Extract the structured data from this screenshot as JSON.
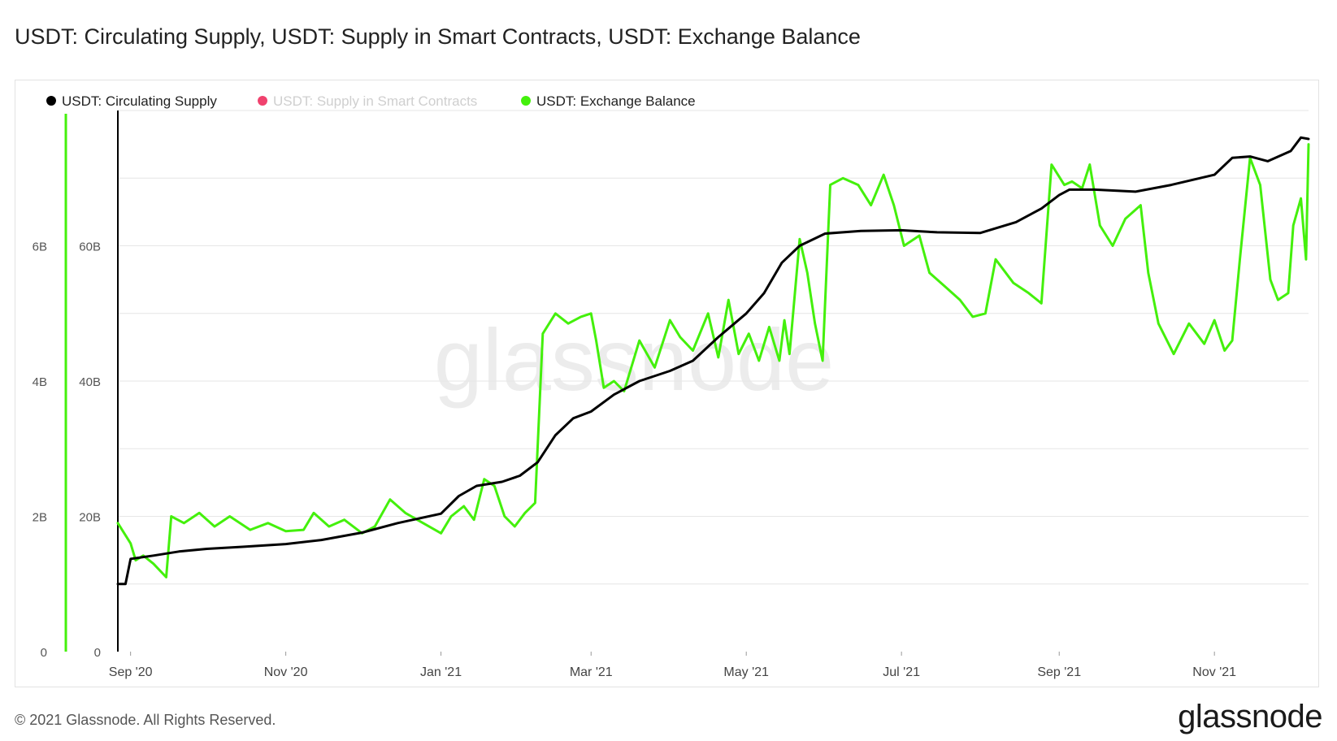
{
  "title": "USDT: Circulating Supply, USDT: Supply in Smart Contracts, USDT: Exchange Balance",
  "footer": "© 2021 Glassnode. All Rights Reserved.",
  "brand": "glassnode",
  "watermark": "glassnode",
  "colors": {
    "circulating": "#000000",
    "smart_contracts": "#f0426e",
    "exchange": "#44f00c",
    "grid": "#e6e6e6",
    "hidden_legend_text": "#cfcfcf"
  },
  "chart_data": {
    "type": "line",
    "legend_position": "top-left",
    "grid": true,
    "x_tick_labels": [
      "Sep '20",
      "Nov '20",
      "Jan '21",
      "Mar '21",
      "May '21",
      "Jul '21",
      "Sep '21",
      "Nov '21"
    ],
    "x_ticks": [
      "2020-09-01",
      "2020-11-01",
      "2021-01-01",
      "2021-03-01",
      "2021-05-01",
      "2021-07-01",
      "2021-09-01",
      "2021-11-01"
    ],
    "xlim": [
      "2020-08-27",
      "2021-12-08"
    ],
    "y_axes": [
      {
        "id": "exchange_axis",
        "tick_labels": [
          "0",
          "2B",
          "4B",
          "6B"
        ],
        "ticks": [
          0,
          2000000000,
          4000000000,
          6000000000
        ],
        "ylim": [
          0,
          8000000000
        ]
      },
      {
        "id": "supply_axis",
        "tick_labels": [
          "0",
          "20B",
          "40B",
          "60B"
        ],
        "ticks": [
          0,
          20000000000,
          40000000000,
          60000000000
        ],
        "ylim": [
          0,
          80000000000
        ]
      }
    ],
    "series": [
      {
        "name": "USDT: Circulating Supply",
        "axis": "supply_axis",
        "visible": true,
        "points": [
          [
            "2020-08-27",
            10.0
          ],
          [
            "2020-08-30",
            10.0
          ],
          [
            "2020-09-01",
            13.7
          ],
          [
            "2020-09-10",
            14.2
          ],
          [
            "2020-09-20",
            14.8
          ],
          [
            "2020-10-01",
            15.2
          ],
          [
            "2020-10-15",
            15.5
          ],
          [
            "2020-11-01",
            15.9
          ],
          [
            "2020-11-15",
            16.5
          ],
          [
            "2020-12-01",
            17.6
          ],
          [
            "2020-12-15",
            19.0
          ],
          [
            "2021-01-01",
            20.4
          ],
          [
            "2021-01-08",
            23.0
          ],
          [
            "2021-01-15",
            24.5
          ],
          [
            "2021-01-25",
            25.1
          ],
          [
            "2021-02-01",
            26.0
          ],
          [
            "2021-02-08",
            28.0
          ],
          [
            "2021-02-15",
            32.0
          ],
          [
            "2021-02-22",
            34.5
          ],
          [
            "2021-03-01",
            35.5
          ],
          [
            "2021-03-10",
            38.0
          ],
          [
            "2021-03-20",
            40.0
          ],
          [
            "2021-04-01",
            41.5
          ],
          [
            "2021-04-10",
            43.0
          ],
          [
            "2021-04-20",
            46.5
          ],
          [
            "2021-05-01",
            50.0
          ],
          [
            "2021-05-08",
            53.0
          ],
          [
            "2021-05-15",
            57.5
          ],
          [
            "2021-05-22",
            60.0
          ],
          [
            "2021-06-01",
            61.8
          ],
          [
            "2021-06-15",
            62.2
          ],
          [
            "2021-07-01",
            62.3
          ],
          [
            "2021-07-15",
            62.0
          ],
          [
            "2021-08-01",
            61.9
          ],
          [
            "2021-08-15",
            63.5
          ],
          [
            "2021-08-25",
            65.5
          ],
          [
            "2021-09-01",
            67.5
          ],
          [
            "2021-09-05",
            68.3
          ],
          [
            "2021-09-15",
            68.3
          ],
          [
            "2021-10-01",
            68.0
          ],
          [
            "2021-10-15",
            69.0
          ],
          [
            "2021-11-01",
            70.5
          ],
          [
            "2021-11-08",
            73.0
          ],
          [
            "2021-11-15",
            73.2
          ],
          [
            "2021-11-22",
            72.5
          ],
          [
            "2021-12-01",
            74.0
          ],
          [
            "2021-12-05",
            76.0
          ],
          [
            "2021-12-08",
            75.8
          ]
        ]
      },
      {
        "name": "USDT: Supply in Smart Contracts",
        "axis": "supply_axis",
        "visible": false,
        "points": []
      },
      {
        "name": "USDT: Exchange Balance",
        "axis": "exchange_axis",
        "visible": true,
        "points": [
          [
            "2020-08-27",
            1.9
          ],
          [
            "2020-09-01",
            1.6
          ],
          [
            "2020-09-03",
            1.35
          ],
          [
            "2020-09-06",
            1.42
          ],
          [
            "2020-09-10",
            1.3
          ],
          [
            "2020-09-15",
            1.1
          ],
          [
            "2020-09-17",
            2.0
          ],
          [
            "2020-09-22",
            1.9
          ],
          [
            "2020-09-28",
            2.05
          ],
          [
            "2020-10-04",
            1.85
          ],
          [
            "2020-10-10",
            2.0
          ],
          [
            "2020-10-18",
            1.8
          ],
          [
            "2020-10-25",
            1.9
          ],
          [
            "2020-11-01",
            1.78
          ],
          [
            "2020-11-08",
            1.8
          ],
          [
            "2020-11-12",
            2.05
          ],
          [
            "2020-11-18",
            1.85
          ],
          [
            "2020-11-24",
            1.95
          ],
          [
            "2020-12-01",
            1.75
          ],
          [
            "2020-12-06",
            1.85
          ],
          [
            "2020-12-12",
            2.25
          ],
          [
            "2020-12-18",
            2.05
          ],
          [
            "2020-12-25",
            1.9
          ],
          [
            "2021-01-01",
            1.75
          ],
          [
            "2021-01-05",
            2.0
          ],
          [
            "2021-01-10",
            2.15
          ],
          [
            "2021-01-14",
            1.95
          ],
          [
            "2021-01-18",
            2.55
          ],
          [
            "2021-01-22",
            2.45
          ],
          [
            "2021-01-26",
            2.0
          ],
          [
            "2021-01-30",
            1.85
          ],
          [
            "2021-02-03",
            2.05
          ],
          [
            "2021-02-07",
            2.2
          ],
          [
            "2021-02-10",
            4.7
          ],
          [
            "2021-02-15",
            5.0
          ],
          [
            "2021-02-20",
            4.85
          ],
          [
            "2021-02-25",
            4.95
          ],
          [
            "2021-03-01",
            5.0
          ],
          [
            "2021-03-03",
            4.6
          ],
          [
            "2021-03-06",
            3.9
          ],
          [
            "2021-03-10",
            4.0
          ],
          [
            "2021-03-14",
            3.85
          ],
          [
            "2021-03-20",
            4.6
          ],
          [
            "2021-03-26",
            4.2
          ],
          [
            "2021-04-01",
            4.9
          ],
          [
            "2021-04-05",
            4.65
          ],
          [
            "2021-04-10",
            4.45
          ],
          [
            "2021-04-16",
            5.0
          ],
          [
            "2021-04-20",
            4.35
          ],
          [
            "2021-04-24",
            5.2
          ],
          [
            "2021-04-28",
            4.4
          ],
          [
            "2021-05-02",
            4.7
          ],
          [
            "2021-05-06",
            4.3
          ],
          [
            "2021-05-10",
            4.8
          ],
          [
            "2021-05-14",
            4.3
          ],
          [
            "2021-05-16",
            4.9
          ],
          [
            "2021-05-18",
            4.4
          ],
          [
            "2021-05-22",
            6.1
          ],
          [
            "2021-05-25",
            5.6
          ],
          [
            "2021-05-28",
            4.85
          ],
          [
            "2021-05-31",
            4.3
          ],
          [
            "2021-06-03",
            6.9
          ],
          [
            "2021-06-08",
            7.0
          ],
          [
            "2021-06-14",
            6.9
          ],
          [
            "2021-06-19",
            6.6
          ],
          [
            "2021-06-24",
            7.05
          ],
          [
            "2021-06-28",
            6.6
          ],
          [
            "2021-07-02",
            6.0
          ],
          [
            "2021-07-08",
            6.15
          ],
          [
            "2021-07-12",
            5.6
          ],
          [
            "2021-07-18",
            5.4
          ],
          [
            "2021-07-24",
            5.2
          ],
          [
            "2021-07-29",
            4.95
          ],
          [
            "2021-08-03",
            5.0
          ],
          [
            "2021-08-07",
            5.8
          ],
          [
            "2021-08-14",
            5.45
          ],
          [
            "2021-08-20",
            5.3
          ],
          [
            "2021-08-25",
            5.15
          ],
          [
            "2021-08-29",
            7.2
          ],
          [
            "2021-09-03",
            6.9
          ],
          [
            "2021-09-06",
            6.95
          ],
          [
            "2021-09-10",
            6.85
          ],
          [
            "2021-09-13",
            7.2
          ],
          [
            "2021-09-17",
            6.3
          ],
          [
            "2021-09-22",
            6.0
          ],
          [
            "2021-09-27",
            6.4
          ],
          [
            "2021-10-03",
            6.6
          ],
          [
            "2021-10-06",
            5.6
          ],
          [
            "2021-10-10",
            4.85
          ],
          [
            "2021-10-16",
            4.4
          ],
          [
            "2021-10-22",
            4.85
          ],
          [
            "2021-10-28",
            4.55
          ],
          [
            "2021-11-01",
            4.9
          ],
          [
            "2021-11-05",
            4.45
          ],
          [
            "2021-11-08",
            4.6
          ],
          [
            "2021-11-11",
            5.8
          ],
          [
            "2021-11-15",
            7.3
          ],
          [
            "2021-11-19",
            6.9
          ],
          [
            "2021-11-23",
            5.5
          ],
          [
            "2021-11-26",
            5.2
          ],
          [
            "2021-11-30",
            5.3
          ],
          [
            "2021-12-02",
            6.3
          ],
          [
            "2021-12-05",
            6.7
          ],
          [
            "2021-12-07",
            5.8
          ],
          [
            "2021-12-08",
            7.5
          ]
        ]
      }
    ]
  }
}
